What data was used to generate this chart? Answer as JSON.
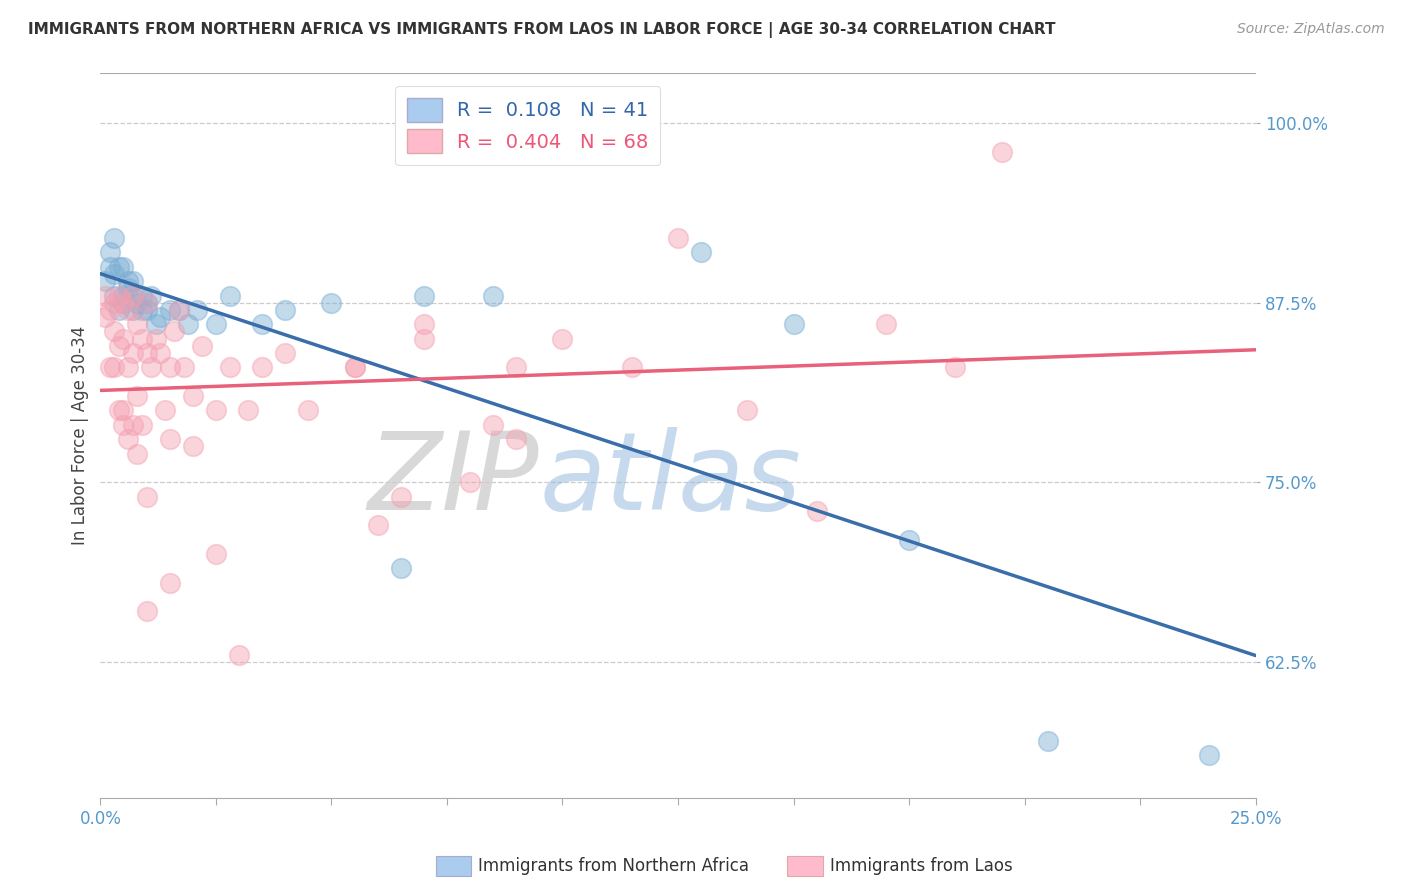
{
  "title": "IMMIGRANTS FROM NORTHERN AFRICA VS IMMIGRANTS FROM LAOS IN LABOR FORCE | AGE 30-34 CORRELATION CHART",
  "source": "Source: ZipAtlas.com",
  "ylabel": "In Labor Force | Age 30-34",
  "xlim": [
    0.0,
    0.25
  ],
  "ylim": [
    0.53,
    1.035
  ],
  "xticks": [
    0.0,
    0.025,
    0.05,
    0.075,
    0.1,
    0.125,
    0.15,
    0.175,
    0.2,
    0.225,
    0.25
  ],
  "xticklabels_show": {
    "0.0": "0.0%",
    "0.25": "25.0%"
  },
  "yticks": [
    0.625,
    0.75,
    0.875,
    1.0
  ],
  "yticklabels": [
    "62.5%",
    "75.0%",
    "87.5%",
    "100.0%"
  ],
  "blue_R": 0.108,
  "blue_N": 41,
  "pink_R": 0.404,
  "pink_N": 68,
  "blue_color": "#7aadd4",
  "pink_color": "#f4a0b0",
  "blue_line_color": "#3a6eaa",
  "pink_line_color": "#e8607a",
  "blue_scatter_x": [
    0.001,
    0.002,
    0.002,
    0.003,
    0.003,
    0.003,
    0.004,
    0.004,
    0.005,
    0.005,
    0.005,
    0.006,
    0.006,
    0.007,
    0.007,
    0.007,
    0.008,
    0.009,
    0.009,
    0.01,
    0.01,
    0.011,
    0.012,
    0.013,
    0.015,
    0.017,
    0.019,
    0.021,
    0.025,
    0.028,
    0.035,
    0.04,
    0.05,
    0.065,
    0.07,
    0.085,
    0.13,
    0.15,
    0.175,
    0.205,
    0.24
  ],
  "blue_scatter_y": [
    0.89,
    0.9,
    0.91,
    0.88,
    0.895,
    0.92,
    0.87,
    0.9,
    0.88,
    0.9,
    0.875,
    0.885,
    0.89,
    0.87,
    0.88,
    0.89,
    0.875,
    0.87,
    0.88,
    0.875,
    0.87,
    0.88,
    0.86,
    0.865,
    0.87,
    0.87,
    0.86,
    0.87,
    0.86,
    0.88,
    0.86,
    0.87,
    0.875,
    0.69,
    0.88,
    0.88,
    0.91,
    0.86,
    0.71,
    0.57,
    0.56
  ],
  "pink_scatter_x": [
    0.001,
    0.001,
    0.002,
    0.002,
    0.003,
    0.003,
    0.003,
    0.004,
    0.004,
    0.004,
    0.005,
    0.005,
    0.005,
    0.006,
    0.006,
    0.006,
    0.007,
    0.007,
    0.007,
    0.008,
    0.008,
    0.008,
    0.009,
    0.009,
    0.01,
    0.01,
    0.011,
    0.012,
    0.013,
    0.014,
    0.015,
    0.016,
    0.017,
    0.018,
    0.02,
    0.022,
    0.025,
    0.028,
    0.032,
    0.04,
    0.045,
    0.055,
    0.065,
    0.07,
    0.085,
    0.09,
    0.1,
    0.115,
    0.125,
    0.14,
    0.155,
    0.17,
    0.185,
    0.195,
    0.015,
    0.025,
    0.035,
    0.055,
    0.07,
    0.08,
    0.09,
    0.03,
    0.06,
    0.01,
    0.02,
    0.01,
    0.015,
    0.005
  ],
  "pink_scatter_y": [
    0.88,
    0.865,
    0.87,
    0.83,
    0.875,
    0.855,
    0.83,
    0.845,
    0.88,
    0.8,
    0.875,
    0.85,
    0.79,
    0.87,
    0.83,
    0.78,
    0.88,
    0.84,
    0.79,
    0.86,
    0.81,
    0.77,
    0.85,
    0.79,
    0.84,
    0.875,
    0.83,
    0.85,
    0.84,
    0.8,
    0.83,
    0.855,
    0.87,
    0.83,
    0.81,
    0.845,
    0.8,
    0.83,
    0.8,
    0.84,
    0.8,
    0.83,
    0.74,
    0.85,
    0.79,
    0.83,
    0.85,
    0.83,
    0.92,
    0.8,
    0.73,
    0.86,
    0.83,
    0.98,
    0.68,
    0.7,
    0.83,
    0.83,
    0.86,
    0.75,
    0.78,
    0.63,
    0.72,
    0.66,
    0.775,
    0.74,
    0.78,
    0.8
  ]
}
